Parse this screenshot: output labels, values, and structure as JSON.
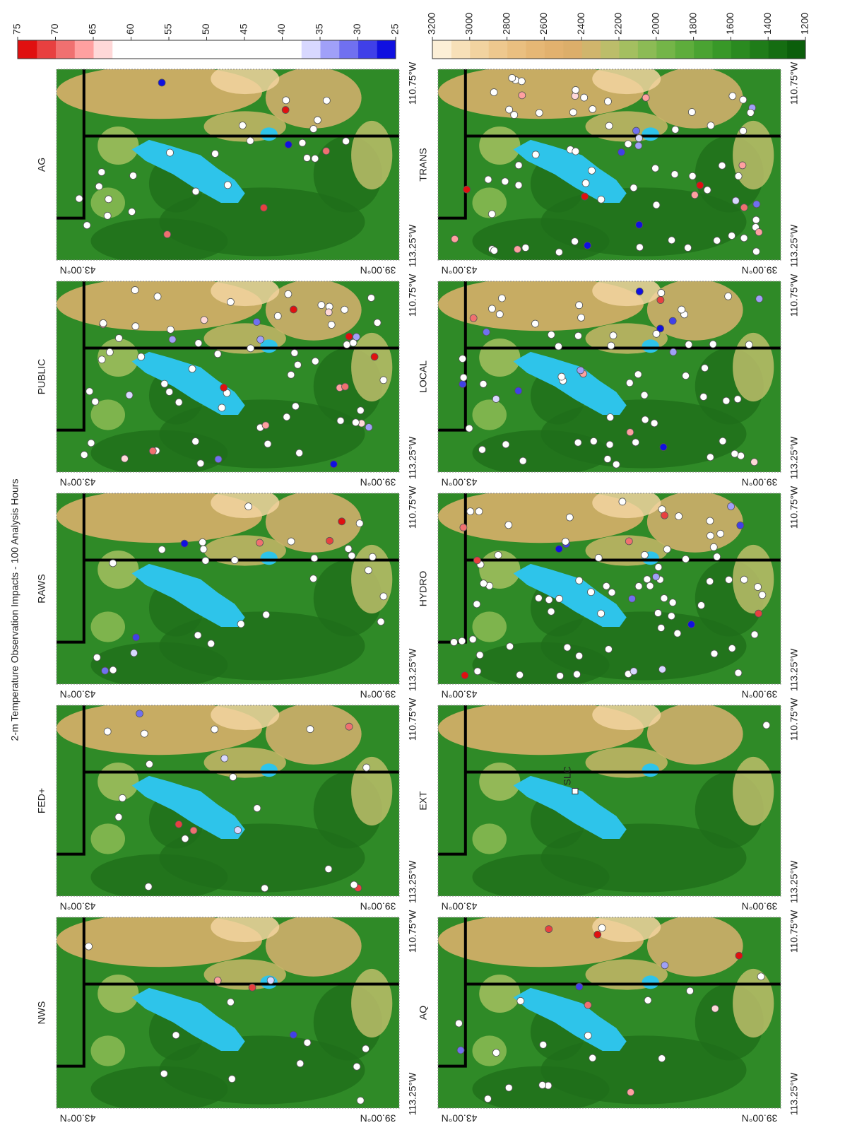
{
  "title": "2-m Temperature Observation Impacts - 100 Analysis Hours",
  "axis_labels": {
    "lat_top": "43.00°N",
    "lat_bottom": "39.00°N",
    "lon_left": "113.25°W",
    "lon_right": "110.75°W"
  },
  "panels": [
    {
      "label": "NWS"
    },
    {
      "label": "FED+"
    },
    {
      "label": "RAWS"
    },
    {
      "label": "PUBLIC"
    },
    {
      "label": "AG"
    },
    {
      "label": "AQ"
    },
    {
      "label": "EXT",
      "annotation": "SLC"
    },
    {
      "label": "HYDRO"
    },
    {
      "label": "LOCAL"
    },
    {
      "label": "TRANS"
    }
  ],
  "colorbars": [
    {
      "lim": [
        25,
        75
      ],
      "ticks": [
        25,
        30,
        35,
        40,
        45,
        50,
        55,
        60,
        65,
        70,
        75
      ],
      "colors": [
        "#1010e0",
        "#4040e8",
        "#7070f0",
        "#a0a0f8",
        "#d8d8ff",
        "#ffffff",
        "#ffffff",
        "#ffffff",
        "#ffffff",
        "#ffffff",
        "#ffffff",
        "#ffffff",
        "#ffffff",
        "#ffffff",
        "#ffffff",
        "#ffd8d8",
        "#ffa0a0",
        "#f07070",
        "#e84040",
        "#e01010"
      ]
    },
    {
      "lim": [
        1200,
        3200
      ],
      "ticks": [
        1200,
        1400,
        1600,
        1800,
        2000,
        2200,
        2400,
        2600,
        2800,
        3000,
        3200
      ],
      "colors": [
        "#0b5e0b",
        "#156d12",
        "#1f7c19",
        "#2a8a20",
        "#389828",
        "#4aa332",
        "#5ead3c",
        "#74b548",
        "#8cbb55",
        "#a4bf60",
        "#bcbd6a",
        "#d0b56c",
        "#dcae6a",
        "#e2b16e",
        "#e6b775",
        "#eabf80",
        "#eec88e",
        "#f2d3a0",
        "#f7e0b8",
        "#fcefd6"
      ]
    }
  ]
}
